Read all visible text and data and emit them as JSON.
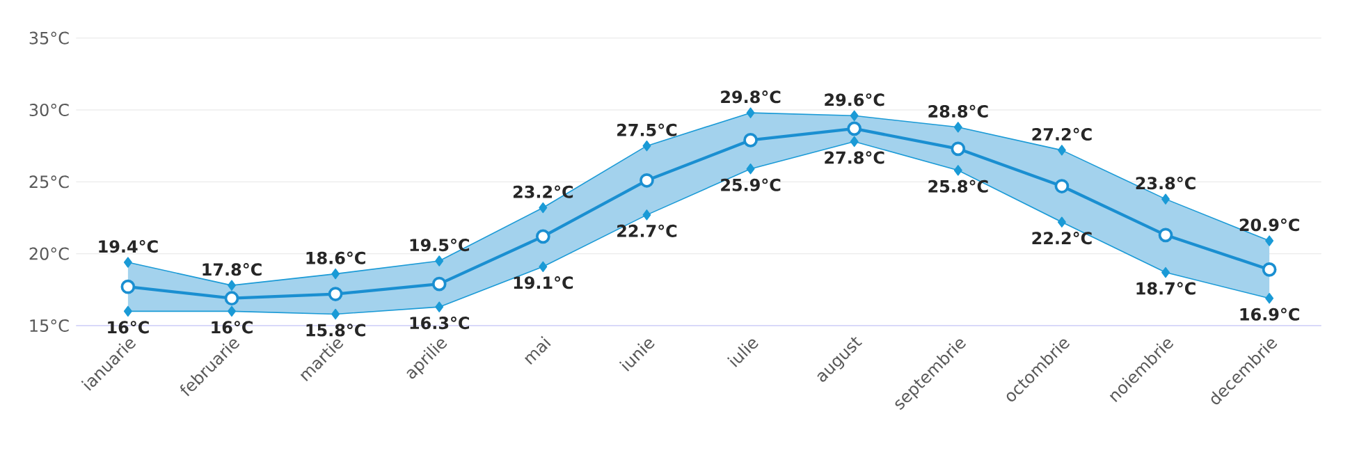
{
  "chart_data": {
    "type": "line",
    "categories": [
      "ianuarie",
      "februarie",
      "martie",
      "aprilie",
      "mai",
      "iunie",
      "iulie",
      "august",
      "septembrie",
      "octombrie",
      "noiembrie",
      "decembrie"
    ],
    "series": [
      {
        "color": "#1a9ad6",
        "marker": "diamond",
        "values": [
          19.4,
          17.8,
          18.6,
          19.5,
          23.2,
          27.5,
          29.8,
          29.6,
          28.8,
          27.2,
          23.8,
          20.9
        ],
        "value_labels": [
          "19.4°C",
          "17.8°C",
          "18.6°C",
          "19.5°C",
          "23.2°C",
          "27.5°C",
          "29.8°C",
          "29.6°C",
          "28.8°C",
          "27.2°C",
          "23.8°C",
          "20.9°C"
        ]
      },
      {
        "color": "#1a9ad6",
        "marker": "diamond",
        "values": [
          16,
          16,
          15.8,
          16.3,
          19.1,
          22.7,
          25.9,
          27.8,
          25.8,
          22.2,
          18.7,
          16.9
        ],
        "value_labels": [
          "16°C",
          "16°C",
          "15.8°C",
          "16.3°C",
          "19.1°C",
          "22.7°C",
          "25.9°C",
          "27.8°C",
          "25.8°C",
          "22.2°C",
          "18.7°C",
          "16.9°C"
        ]
      },
      {
        "color": "#1a8fd1",
        "marker": "circle",
        "values": [
          17.7,
          16.9,
          17.2,
          17.9,
          21.2,
          25.1,
          27.9,
          28.7,
          27.3,
          24.7,
          21.3,
          18.9
        ],
        "lower": [
          16,
          16,
          15.8,
          16.3,
          19.1,
          22.7,
          25.9,
          27.8,
          25.8,
          22.2,
          18.7,
          16.9
        ],
        "upper": [
          19.4,
          17.8,
          18.6,
          19.5,
          23.2,
          27.5,
          29.8,
          29.6,
          28.8,
          27.2,
          23.8,
          20.9
        ]
      }
    ],
    "ylim": [
      15,
      35
    ],
    "yticks": [
      {
        "value": 15,
        "label": "15°C"
      },
      {
        "value": 20,
        "label": "20°C"
      },
      {
        "value": 25,
        "label": "25°C"
      },
      {
        "value": 30,
        "label": "30°C"
      },
      {
        "value": 35,
        "label": "35°C"
      }
    ],
    "grid": "y",
    "line_style": "solid"
  }
}
